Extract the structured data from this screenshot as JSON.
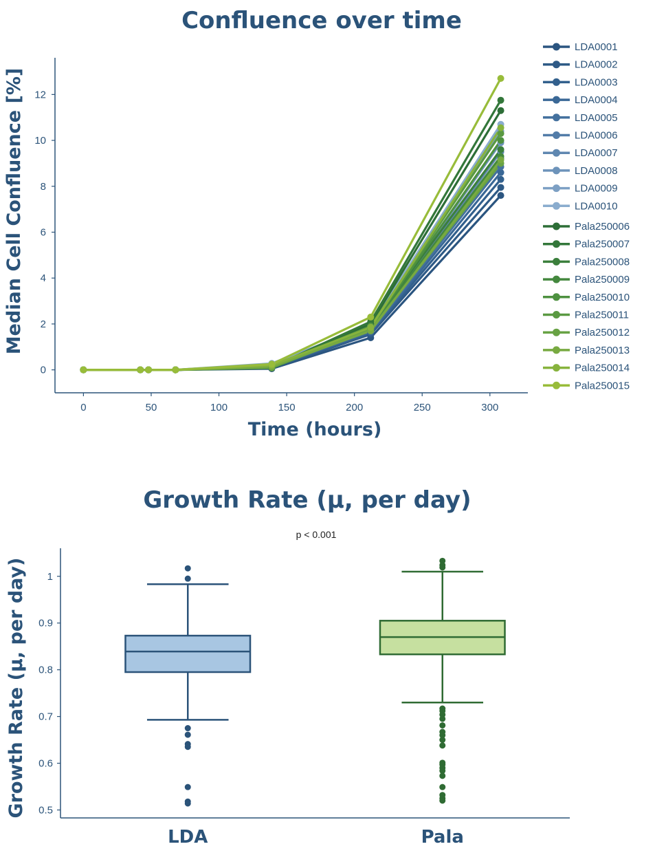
{
  "chart_data": [
    {
      "type": "line",
      "title": "Confluence over time",
      "xlabel": "Time (hours)",
      "ylabel": "Median Cell Confluence [%]",
      "xlim": [
        -21,
        328
      ],
      "ylim": [
        -1,
        13.6
      ],
      "xticks": [
        "0",
        "50",
        "100",
        "150",
        "200",
        "250",
        "300"
      ],
      "xtick_values": [
        0,
        50,
        100,
        150,
        200,
        250,
        300
      ],
      "yticks": [
        "0",
        "2",
        "4",
        "6",
        "8",
        "10",
        "12"
      ],
      "ytick_values": [
        0,
        2,
        4,
        6,
        8,
        10,
        12
      ],
      "legend_position": "right",
      "series": [
        {
          "name": "LDA0001",
          "color": "#2b5580",
          "x": [
            0,
            42,
            48,
            68,
            139,
            212,
            308
          ],
          "y": [
            0,
            0,
            0,
            0,
            0.05,
            1.4,
            7.6
          ]
        },
        {
          "name": "LDA0002",
          "color": "#2e5a86",
          "x": [
            0,
            42,
            48,
            68,
            139,
            212,
            308
          ],
          "y": [
            0,
            0,
            0,
            0,
            0.08,
            1.55,
            7.95
          ]
        },
        {
          "name": "LDA0003",
          "color": "#32608d",
          "x": [
            0,
            42,
            48,
            68,
            139,
            212,
            308
          ],
          "y": [
            0,
            0,
            0,
            0,
            0.1,
            1.6,
            8.3
          ]
        },
        {
          "name": "LDA0004",
          "color": "#3a6896",
          "x": [
            0,
            42,
            48,
            68,
            139,
            212,
            308
          ],
          "y": [
            0,
            0,
            0,
            0,
            0.12,
            1.65,
            8.6
          ]
        },
        {
          "name": "LDA0005",
          "color": "#44719e",
          "x": [
            0,
            42,
            48,
            68,
            139,
            212,
            308
          ],
          "y": [
            0,
            0,
            0,
            0,
            0.15,
            1.7,
            8.85
          ]
        },
        {
          "name": "LDA0006",
          "color": "#527ca8",
          "x": [
            0,
            42,
            48,
            68,
            139,
            212,
            308
          ],
          "y": [
            0,
            0,
            0,
            0,
            0.18,
            1.75,
            9.2
          ]
        },
        {
          "name": "LDA0007",
          "color": "#5f87b0",
          "x": [
            0,
            42,
            48,
            68,
            139,
            212,
            308
          ],
          "y": [
            0,
            0,
            0,
            0,
            0.2,
            1.8,
            9.5
          ]
        },
        {
          "name": "LDA0008",
          "color": "#6d93ba",
          "x": [
            0,
            42,
            48,
            68,
            139,
            212,
            308
          ],
          "y": [
            0,
            0,
            0,
            0,
            0.22,
            1.85,
            9.9
          ]
        },
        {
          "name": "LDA0009",
          "color": "#7da0c4",
          "x": [
            0,
            42,
            48,
            68,
            139,
            212,
            308
          ],
          "y": [
            0,
            0,
            0,
            0,
            0.25,
            1.9,
            10.4
          ]
        },
        {
          "name": "LDA0010",
          "color": "#8aacce",
          "x": [
            0,
            42,
            48,
            68,
            139,
            212,
            308
          ],
          "y": [
            0,
            0,
            0,
            0,
            0.28,
            1.95,
            10.7
          ]
        },
        {
          "name": "Pala250006",
          "color": "#2d6e37",
          "x": [
            0,
            42,
            48,
            68,
            139,
            212,
            308
          ],
          "y": [
            0,
            0,
            0,
            0,
            0.1,
            2.0,
            11.3
          ]
        },
        {
          "name": "Pala250007",
          "color": "#33773a",
          "x": [
            0,
            42,
            48,
            68,
            139,
            212,
            308
          ],
          "y": [
            0,
            0,
            0,
            0,
            0.12,
            2.1,
            11.75
          ]
        },
        {
          "name": "Pala250008",
          "color": "#3b7f3c",
          "x": [
            0,
            42,
            48,
            68,
            139,
            212,
            308
          ],
          "y": [
            0,
            0,
            0,
            0,
            0.1,
            1.9,
            9.6
          ]
        },
        {
          "name": "Pala250009",
          "color": "#44883e",
          "x": [
            0,
            42,
            48,
            68,
            139,
            212,
            308
          ],
          "y": [
            0,
            0,
            0,
            0,
            0.08,
            1.8,
            9.3
          ]
        },
        {
          "name": "Pala250010",
          "color": "#4e9140",
          "x": [
            0,
            42,
            48,
            68,
            139,
            212,
            308
          ],
          "y": [
            0,
            0,
            0,
            0,
            0.1,
            1.85,
            10.0
          ]
        },
        {
          "name": "Pala250011",
          "color": "#5a9942",
          "x": [
            0,
            42,
            48,
            68,
            139,
            212,
            308
          ],
          "y": [
            0,
            0,
            0,
            0,
            0.12,
            1.9,
            10.3
          ]
        },
        {
          "name": "Pala250012",
          "color": "#68a244",
          "x": [
            0,
            42,
            48,
            68,
            139,
            212,
            308
          ],
          "y": [
            0,
            0,
            0,
            0,
            0.1,
            1.75,
            9.0
          ]
        },
        {
          "name": "Pala250013",
          "color": "#78aa41",
          "x": [
            0,
            42,
            48,
            68,
            139,
            212,
            308
          ],
          "y": [
            0,
            0,
            0,
            0,
            0.15,
            1.7,
            9.15
          ]
        },
        {
          "name": "Pala250014",
          "color": "#87b33d",
          "x": [
            0,
            42,
            48,
            68,
            139,
            212,
            308
          ],
          "y": [
            0,
            0,
            0,
            0,
            0.2,
            1.85,
            10.55
          ]
        },
        {
          "name": "Pala250015",
          "color": "#98bc3a",
          "x": [
            0,
            42,
            48,
            68,
            139,
            212,
            308
          ],
          "y": [
            0,
            0,
            0,
            0,
            0.25,
            2.3,
            12.7
          ]
        }
      ]
    },
    {
      "type": "box",
      "title": "Growth Rate (μ, per day)",
      "subtitle": "p < 0.001",
      "xlabel": "",
      "ylabel": "Growth Rate (μ, per day)",
      "ylim": [
        0.483,
        1.06
      ],
      "yticks": [
        "0.5",
        "0.6",
        "0.7",
        "0.8",
        "0.9",
        "1"
      ],
      "ytick_values": [
        0.5,
        0.6,
        0.7,
        0.8,
        0.9,
        1.0
      ],
      "groups": [
        {
          "name": "LDA",
          "fill": "#a8c6e2",
          "stroke": "#2b5379",
          "whisker_low": 0.693,
          "q1": 0.795,
          "median": 0.839,
          "q3": 0.873,
          "whisker_high": 0.983,
          "outliers": [
            1.017,
            0.995,
            0.675,
            0.661,
            0.641,
            0.635,
            0.549,
            0.518,
            0.514
          ]
        },
        {
          "name": "Pala",
          "fill": "#c6e0a0",
          "stroke": "#2f6b33",
          "whisker_low": 0.73,
          "q1": 0.833,
          "median": 0.87,
          "q3": 0.905,
          "whisker_high": 1.01,
          "outliers": [
            1.033,
            1.024,
            1.019,
            0.717,
            0.712,
            0.704,
            0.695,
            0.681,
            0.667,
            0.66,
            0.65,
            0.638,
            0.601,
            0.597,
            0.59,
            0.584,
            0.573,
            0.549,
            0.532,
            0.525,
            0.52
          ]
        }
      ]
    }
  ]
}
